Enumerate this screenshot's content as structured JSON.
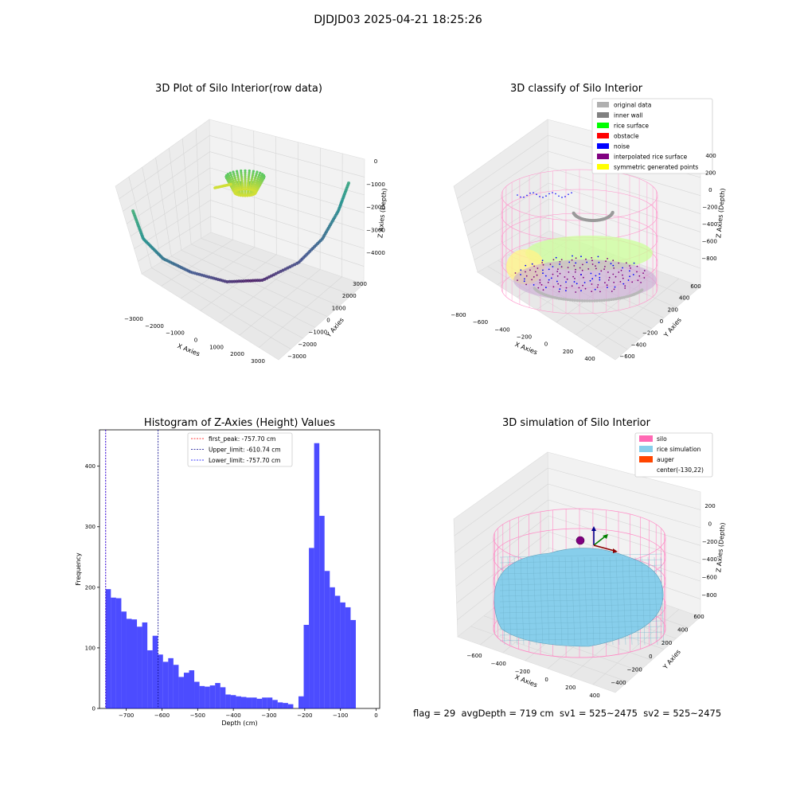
{
  "figure": {
    "suptitle": "DJDJD03 2025-04-21 18:25:26",
    "stats_text": "flag = 29  avgDepth = 719 cm  sv1 = 525~2475  sv2 = 525~2475"
  },
  "chart_data": [
    {
      "type": "scatter",
      "projection": "3d",
      "title": "3D Plot of Silo Interior(row data)",
      "xlabel": "X Axies",
      "ylabel": "Y Axies",
      "zlabel": "Z Axies (Depth)",
      "xticks": [
        "−3000",
        "−2000",
        "−1000",
        "0",
        "1000",
        "2000",
        "3000"
      ],
      "yticks": [
        "−3000",
        "−2000",
        "−1000",
        "0",
        "1000",
        "2000",
        "3000"
      ],
      "zticks": [
        "0",
        "−1000",
        "−2000",
        "−3000",
        "−4000"
      ],
      "colormap": "viridis"
    },
    {
      "type": "scatter",
      "projection": "3d",
      "title": "3D classify of Silo Interior",
      "xlabel": "X Axies",
      "ylabel": "Y Axies",
      "zlabel": "Z Axies (Depth)",
      "xticks": [
        "−800",
        "−600",
        "−400",
        "−200",
        "0",
        "200",
        "400"
      ],
      "yticks": [
        "−600",
        "−400",
        "−200",
        "0",
        "200",
        "400",
        "600"
      ],
      "zticks": [
        "400",
        "200",
        "0",
        "−200",
        "−400",
        "−600",
        "−800"
      ],
      "legend": [
        {
          "label": "original data",
          "color": "#b0b0b0"
        },
        {
          "label": "inner wall",
          "color": "#808080"
        },
        {
          "label": "rice surface",
          "color": "#00ff00"
        },
        {
          "label": "obstacle",
          "color": "#ff0000"
        },
        {
          "label": "noise",
          "color": "#0000ff"
        },
        {
          "label": "interpolated rice surface",
          "color": "#800080"
        },
        {
          "label": "symmetric generated points",
          "color": "#ffff00"
        }
      ],
      "legend_position": "upper right"
    },
    {
      "type": "bar",
      "subtype": "histogram",
      "title": "Histogram of Z-Axies (Height) Values",
      "xlabel": "Depth (cm)",
      "ylabel": "Frequency",
      "xlim": [
        -775,
        10
      ],
      "ylim": [
        0,
        460
      ],
      "xticks": [
        -700,
        -600,
        -500,
        -400,
        -300,
        -200,
        -100,
        0
      ],
      "xtick_labels": [
        "−700",
        "−600",
        "−500",
        "−400",
        "−300",
        "−200",
        "−100",
        "0"
      ],
      "yticks": [
        0,
        100,
        200,
        300,
        400
      ],
      "bar_color": "#0000ff",
      "bin_start": -757.7,
      "bin_width": 14.6,
      "values": [
        197,
        183,
        182,
        160,
        148,
        147,
        135,
        142,
        96,
        120,
        89,
        77,
        83,
        72,
        52,
        59,
        63,
        44,
        37,
        36,
        38,
        42,
        35,
        23,
        22,
        20,
        19,
        18,
        18,
        16,
        18,
        18,
        14,
        10,
        9,
        7,
        0,
        20,
        138,
        265,
        438,
        318,
        227,
        200,
        186,
        175,
        167,
        146
      ],
      "vlines": [
        {
          "label": "first_peak: -757.70 cm",
          "value": -757.7,
          "color": "#ff0000"
        },
        {
          "label": "Upper_limit: -610.74 cm",
          "value": -610.74,
          "color": "#00008b"
        },
        {
          "label": "Lower_limit: -757.70 cm",
          "value": -757.7,
          "color": "#0000ff"
        }
      ],
      "legend_position": "upper center"
    },
    {
      "type": "scatter",
      "projection": "3d",
      "title": "3D simulation of Silo Interior",
      "xlabel": "X Axies",
      "ylabel": "Y Axies",
      "zlabel": "Z Axies (Depth)",
      "xticks": [
        "−600",
        "−400",
        "−200",
        "0",
        "200",
        "400"
      ],
      "yticks": [
        "−400",
        "−200",
        "0",
        "200",
        "400",
        "600"
      ],
      "zticks": [
        "200",
        "0",
        "−200",
        "−400",
        "−600",
        "−800"
      ],
      "legend": [
        {
          "label": "silo",
          "color": "#ff69b4"
        },
        {
          "label": "rice simulation",
          "color": "#87ceeb"
        },
        {
          "label": "auger",
          "color": "#ff4500"
        },
        {
          "label": "center(-130,22)",
          "color": ""
        }
      ],
      "legend_position": "upper right"
    }
  ]
}
